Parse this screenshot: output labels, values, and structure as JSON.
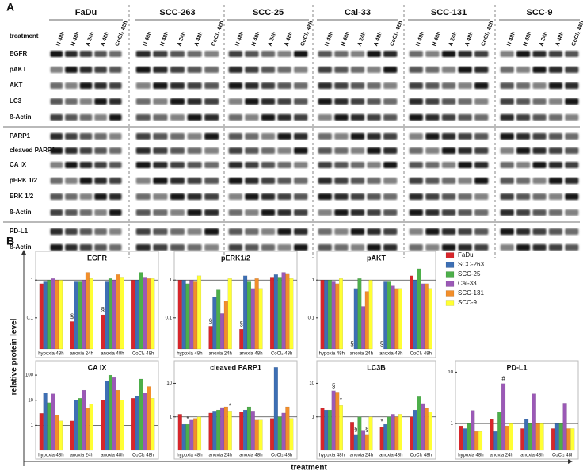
{
  "panel_a": {
    "label": "A",
    "treatment_label": "treatment",
    "cell_lines": [
      "FaDu",
      "SCC-263",
      "SCC-25",
      "Cal-33",
      "SCC-131",
      "SCC-9"
    ],
    "lanes": [
      "N 48h",
      "H 48h",
      "A 24h",
      "A 48h",
      "CoCl₂ 48h"
    ],
    "proteins": [
      "EGFR",
      "pAKT",
      "AKT",
      "LC3",
      "ß-Actin",
      "PARP1",
      "cleaved PARP1",
      "CA IX",
      "pERK 1/2",
      "ERK 1/2",
      "ß-Actin",
      "PD-L1",
      "ß-Actin"
    ]
  },
  "panel_b": {
    "label": "B",
    "y_label": "relative protein level",
    "x_label": "treatment"
  },
  "chart_data": [
    {
      "type": "bar",
      "title": "EGFR",
      "log_y": true,
      "hline": 1,
      "categories": [
        "hypoxia 48h",
        "anoxia 24h",
        "anoxia 48h",
        "CoCl₂ 48h"
      ],
      "ylim": [
        0.015,
        5
      ],
      "yticks": [
        0.1,
        1
      ],
      "series": [
        {
          "name": "FaDu",
          "color": "#d7262b",
          "values": [
            0.8,
            0.08,
            0.12,
            1
          ]
        },
        {
          "name": "SCC-263",
          "color": "#3d6fb4",
          "values": [
            0.9,
            0.9,
            0.9,
            1
          ]
        },
        {
          "name": "SCC-25",
          "color": "#4daf4a",
          "values": [
            1,
            0.9,
            1.1,
            1.6
          ]
        },
        {
          "name": "Cal-33",
          "color": "#9b59b6",
          "values": [
            1.1,
            1,
            1,
            1.2
          ]
        },
        {
          "name": "SCC-131",
          "color": "#f28e2b",
          "values": [
            1,
            1.6,
            1.4,
            1.1
          ]
        },
        {
          "name": "SCC-9",
          "color": "#ffff33",
          "values": [
            1,
            1.1,
            1.2,
            1.1
          ]
        }
      ],
      "annotations": [
        {
          "text": "§",
          "category": "anoxia 24h",
          "series": "FaDu"
        },
        {
          "text": "§",
          "category": "anoxia 48h",
          "series": "FaDu"
        }
      ]
    },
    {
      "type": "bar",
      "title": "pERK1/2",
      "log_y": true,
      "hline": 1,
      "categories": [
        "hypoxia 48h",
        "anoxia 24h",
        "anoxia 48h",
        "CoCl₂ 48h"
      ],
      "ylim": [
        0.015,
        5
      ],
      "yticks": [
        0.1,
        1
      ],
      "series": [
        {
          "name": "FaDu",
          "color": "#d7262b",
          "values": [
            1,
            0.06,
            0.05,
            1.2
          ]
        },
        {
          "name": "SCC-263",
          "color": "#3d6fb4",
          "values": [
            1,
            0.35,
            1.3,
            1.4
          ]
        },
        {
          "name": "SCC-25",
          "color": "#4daf4a",
          "values": [
            0.8,
            0.55,
            0.9,
            1.2
          ]
        },
        {
          "name": "Cal-33",
          "color": "#9b59b6",
          "values": [
            1,
            0.13,
            0.6,
            1.6
          ]
        },
        {
          "name": "SCC-131",
          "color": "#f28e2b",
          "values": [
            0.9,
            0.28,
            1.1,
            1.5
          ]
        },
        {
          "name": "SCC-9",
          "color": "#ffff33",
          "values": [
            1.3,
            1.1,
            0.6,
            1.1
          ]
        }
      ],
      "annotations": [
        {
          "text": "§",
          "category": "anoxia 24h",
          "series": "FaDu"
        },
        {
          "text": "§",
          "category": "anoxia 48h",
          "series": "FaDu"
        }
      ]
    },
    {
      "type": "bar",
      "title": "pAKT",
      "log_y": true,
      "hline": 1,
      "categories": [
        "hypoxia 48h",
        "anoxia 24h",
        "anoxia 48h",
        "CoCl₂ 48h"
      ],
      "ylim": [
        0.015,
        5
      ],
      "yticks": [
        0.1,
        1
      ],
      "series": [
        {
          "name": "FaDu",
          "color": "#d7262b",
          "values": [
            1,
            null,
            null,
            1.3
          ]
        },
        {
          "name": "SCC-263",
          "color": "#3d6fb4",
          "values": [
            1,
            0.6,
            0.9,
            1
          ]
        },
        {
          "name": "SCC-25",
          "color": "#4daf4a",
          "values": [
            1,
            1.1,
            0.9,
            2
          ]
        },
        {
          "name": "Cal-33",
          "color": "#9b59b6",
          "values": [
            0.9,
            0.2,
            0.7,
            0.8
          ]
        },
        {
          "name": "SCC-131",
          "color": "#f28e2b",
          "values": [
            0.8,
            0.5,
            0.6,
            0.8
          ]
        },
        {
          "name": "SCC-9",
          "color": "#ffff33",
          "values": [
            1.1,
            1,
            0.6,
            0.6
          ]
        }
      ],
      "annotations": [
        {
          "text": "§",
          "category": "anoxia 24h",
          "series": "FaDu"
        },
        {
          "text": "§",
          "category": "anoxia 48h",
          "series": "FaDu"
        }
      ]
    },
    {
      "type": "bar",
      "title": "CA IX",
      "log_y": true,
      "hline": 1,
      "categories": [
        "hypoxia 48h",
        "anoxia 24h",
        "anoxia 48h",
        "CoCl₂ 48h"
      ],
      "ylim": [
        0.1,
        300
      ],
      "yticks": [
        1,
        10,
        100
      ],
      "series": [
        {
          "name": "FaDu",
          "color": "#d7262b",
          "values": [
            3,
            1.5,
            10,
            12
          ]
        },
        {
          "name": "SCC-263",
          "color": "#3d6fb4",
          "values": [
            20,
            10,
            60,
            15
          ]
        },
        {
          "name": "SCC-25",
          "color": "#4daf4a",
          "values": [
            8,
            12,
            100,
            70
          ]
        },
        {
          "name": "Cal-33",
          "color": "#9b59b6",
          "values": [
            18,
            25,
            80,
            20
          ]
        },
        {
          "name": "SCC-131",
          "color": "#f28e2b",
          "values": [
            2.5,
            5,
            25,
            35
          ]
        },
        {
          "name": "SCC-9",
          "color": "#ffff33",
          "values": [
            1.5,
            7,
            10,
            12
          ]
        }
      ],
      "annotations": []
    },
    {
      "type": "bar",
      "title": "cleaved PARP1",
      "log_y": true,
      "hline": 1,
      "categories": [
        "hypoxia 48h",
        "anoxia 24h",
        "anoxia 48h",
        "CoCl₂ 48h"
      ],
      "ylim": [
        0.1,
        40
      ],
      "yticks": [
        1,
        10
      ],
      "series": [
        {
          "name": "FaDu",
          "color": "#d7262b",
          "values": [
            1.2,
            1.3,
            1.4,
            0.9
          ]
        },
        {
          "name": "SCC-263",
          "color": "#3d6fb4",
          "values": [
            0.6,
            1.5,
            1.6,
            30
          ]
        },
        {
          "name": "SCC-25",
          "color": "#4daf4a",
          "values": [
            0.6,
            1.6,
            2,
            1
          ]
        },
        {
          "name": "Cal-33",
          "color": "#9b59b6",
          "values": [
            0.8,
            1.9,
            1.5,
            1.3
          ]
        },
        {
          "name": "SCC-131",
          "color": "#f28e2b",
          "values": [
            0.9,
            2,
            0.8,
            2
          ]
        },
        {
          "name": "SCC-9",
          "color": "#ffff33",
          "values": [
            1,
            1.5,
            0.8,
            0.9
          ]
        }
      ],
      "annotations": [
        {
          "text": "*",
          "category": "hypoxia 48h",
          "series": "SCC-25"
        },
        {
          "text": "*",
          "category": "anoxia 24h",
          "series": "SCC-9"
        }
      ]
    },
    {
      "type": "bar",
      "title": "LC3B",
      "log_y": true,
      "hline": 1,
      "categories": [
        "hypoxia 48h",
        "anoxia 24h",
        "anoxia 48h",
        "CoCl₂ 48h"
      ],
      "ylim": [
        0.1,
        40
      ],
      "yticks": [
        1,
        10
      ],
      "series": [
        {
          "name": "FaDu",
          "color": "#d7262b",
          "values": [
            1.8,
            0.7,
            0.5,
            1
          ]
        },
        {
          "name": "SCC-263",
          "color": "#3d6fb4",
          "values": [
            1.6,
            0.3,
            0.6,
            1.6
          ]
        },
        {
          "name": "SCC-25",
          "color": "#4daf4a",
          "values": [
            1.6,
            1,
            1,
            4
          ]
        },
        {
          "name": "Cal-33",
          "color": "#9b59b6",
          "values": [
            6,
            0.4,
            1.2,
            2.5
          ]
        },
        {
          "name": "SCC-131",
          "color": "#f28e2b",
          "values": [
            5.5,
            0.3,
            1,
            1.8
          ]
        },
        {
          "name": "SCC-9",
          "color": "#ffff33",
          "values": [
            2.2,
            1,
            1.2,
            1.4
          ]
        }
      ],
      "annotations": [
        {
          "text": "§",
          "category": "hypoxia 48h",
          "series": "Cal-33"
        },
        {
          "text": "*",
          "category": "hypoxia 48h",
          "series": "SCC-9"
        },
        {
          "text": "§",
          "category": "anoxia 24h",
          "series": "SCC-263"
        },
        {
          "text": "§",
          "category": "anoxia 24h",
          "series": "SCC-131"
        },
        {
          "text": "*",
          "category": "anoxia 48h",
          "series": "FaDu"
        }
      ]
    },
    {
      "type": "bar",
      "title": "PD-L1",
      "log_y": true,
      "hline": 1,
      "categories": [
        "hypoxia 48h",
        "anoxia 24h",
        "anoxia 48h",
        "CoCl₂ 48h"
      ],
      "ylim": [
        0.3,
        15
      ],
      "yticks": [
        1,
        10
      ],
      "series": [
        {
          "name": "FaDu",
          "color": "#d7262b",
          "values": [
            0.9,
            1.2,
            0.8,
            0.8
          ]
        },
        {
          "name": "SCC-263",
          "color": "#3d6fb4",
          "values": [
            0.8,
            0.7,
            1.2,
            1
          ]
        },
        {
          "name": "SCC-25",
          "color": "#4daf4a",
          "values": [
            1,
            1.7,
            1,
            1
          ]
        },
        {
          "name": "Cal-33",
          "color": "#9b59b6",
          "values": [
            1.8,
            6,
            3.8,
            2.5
          ]
        },
        {
          "name": "SCC-131",
          "color": "#f28e2b",
          "values": [
            0.7,
            0.9,
            1,
            0.8
          ]
        },
        {
          "name": "SCC-9",
          "color": "#ffff33",
          "values": [
            0.7,
            1,
            1,
            0.8
          ]
        }
      ],
      "annotations": [
        {
          "text": "#",
          "category": "anoxia 24h",
          "series": "Cal-33"
        }
      ]
    }
  ]
}
